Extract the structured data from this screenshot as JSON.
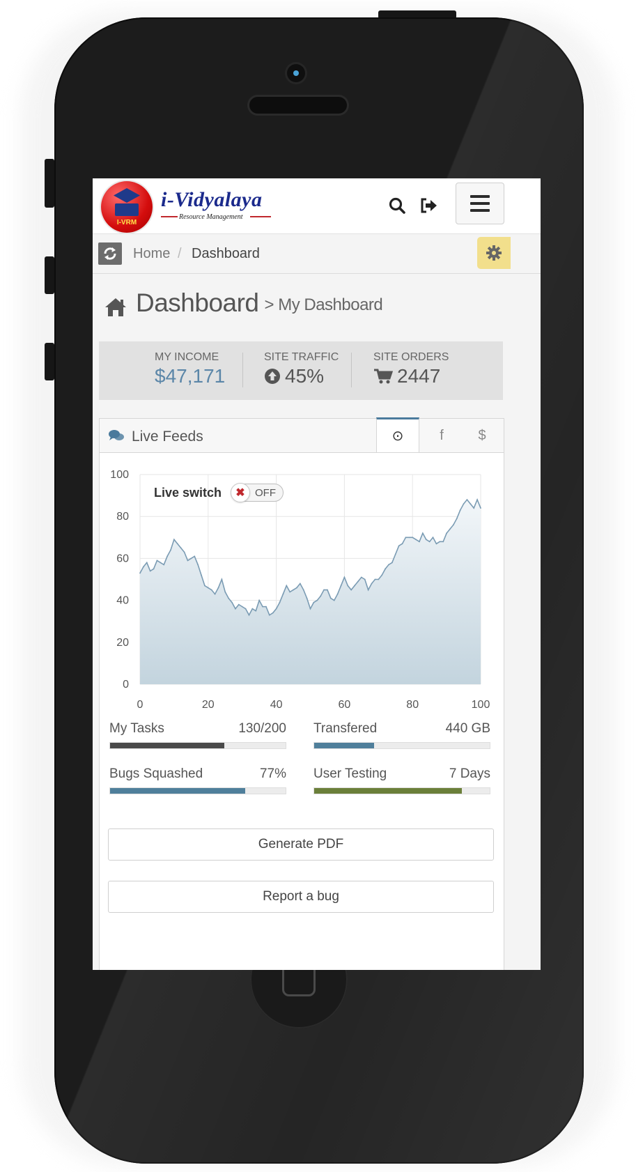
{
  "app": {
    "brand_name": "i-Vidyalaya",
    "brand_tagline": "Resource Management",
    "logo_badge": "I-VRM"
  },
  "topbar": {
    "icons": [
      "search-icon",
      "sign-out-icon",
      "hamburger-menu-icon"
    ]
  },
  "breadcrumb": {
    "items": [
      "Home",
      "Dashboard"
    ],
    "separator": "/"
  },
  "page": {
    "title": "Dashboard",
    "subtitle": "> My Dashboard"
  },
  "stats": [
    {
      "label": "MY INCOME",
      "value": "$47,171",
      "icon": "",
      "color": "#5b86a8"
    },
    {
      "label": "SITE TRAFFIC",
      "value": "45%",
      "icon": "arrow-circle-up-icon",
      "color": "#555555"
    },
    {
      "label": "SITE ORDERS",
      "value": "2447",
      "icon": "shopping-cart-icon",
      "color": "#555555"
    }
  ],
  "feed": {
    "title": "Live Feeds",
    "tabs": [
      {
        "icon": "clock-icon",
        "glyph": "⊙",
        "active": true
      },
      {
        "icon": "facebook-icon",
        "glyph": "f",
        "active": false
      },
      {
        "icon": "dollar-icon",
        "glyph": "$",
        "active": false
      }
    ],
    "live_switch": {
      "label": "Live switch",
      "state": "OFF",
      "knob": "✖"
    }
  },
  "chart_data": {
    "type": "area",
    "title": "",
    "xlabel": "",
    "ylabel": "",
    "xlim": [
      0,
      100
    ],
    "ylim": [
      0,
      100
    ],
    "x_ticks": [
      0,
      20,
      40,
      60,
      80,
      100
    ],
    "y_ticks": [
      0,
      20,
      40,
      60,
      80,
      100
    ],
    "grid": true,
    "series": [
      {
        "values": [
          53,
          56,
          58,
          54,
          55,
          59,
          58,
          57,
          61,
          64,
          69,
          67,
          65,
          63,
          59,
          60,
          61,
          57,
          52,
          47,
          46,
          45,
          43,
          46,
          50,
          44,
          41,
          39,
          36,
          38,
          37,
          36,
          33,
          36,
          35,
          40,
          37,
          37,
          33,
          34,
          36,
          39,
          43,
          47,
          44,
          45,
          46,
          48,
          45,
          41,
          36,
          39,
          40,
          42,
          45,
          45,
          41,
          40,
          43,
          47,
          51,
          47,
          45,
          47,
          49,
          51,
          50,
          45,
          48,
          50,
          50,
          52,
          55,
          57,
          58,
          62,
          66,
          67,
          70,
          70,
          70,
          69,
          68,
          72,
          69,
          68,
          70,
          67,
          68,
          68,
          72,
          74,
          76,
          79,
          83,
          86,
          88,
          86,
          84,
          88,
          84
        ]
      }
    ],
    "colors": {
      "line": "#7a9bb3",
      "fill_top": "#f2f6f9",
      "fill_bottom": "#c3d4de"
    }
  },
  "progress": [
    {
      "label": "My Tasks",
      "value_text": "130/200",
      "fraction": 0.65,
      "color": "#4a4a4a"
    },
    {
      "label": "Transfered",
      "value_text": "440 GB",
      "fraction": 0.34,
      "color": "#4f7f9b"
    },
    {
      "label": "Bugs Squashed",
      "value_text": "77%",
      "fraction": 0.77,
      "color": "#4f7f9b"
    },
    {
      "label": "User Testing",
      "value_text": "7 Days",
      "fraction": 0.84,
      "color": "#6b7f3a"
    }
  ],
  "actions": {
    "generate_pdf": "Generate PDF",
    "report_bug": "Report a bug"
  }
}
